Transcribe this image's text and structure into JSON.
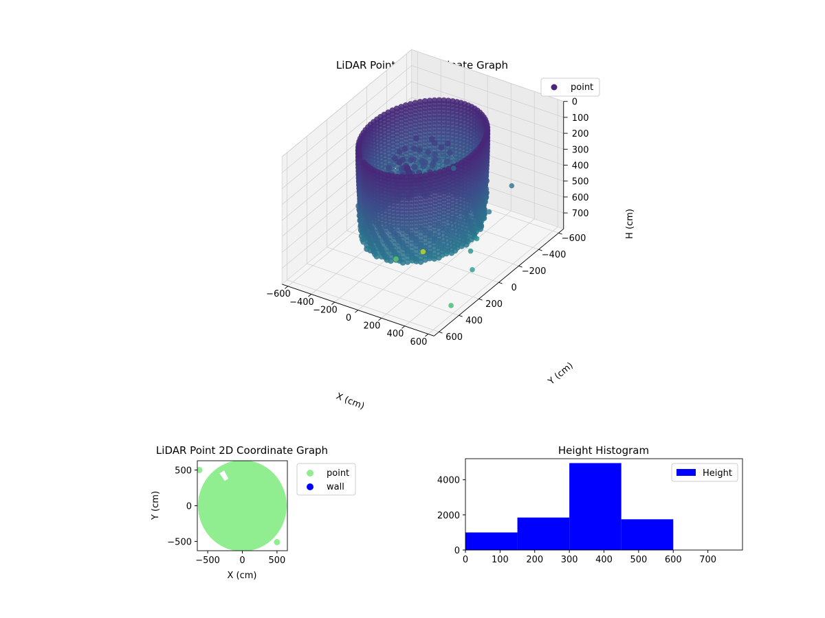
{
  "chart_data": [
    {
      "type": "scatter",
      "projection": "3d",
      "title": "LiDAR Point 3D Coordinate Graph",
      "xlabel": "X (cm)",
      "ylabel": "Y (cm)",
      "zlabel": "H (cm)",
      "xlim": [
        -650,
        650
      ],
      "ylim": [
        -650,
        650
      ],
      "zlim": [
        800,
        0
      ],
      "z_inverted": true,
      "xticks": [
        -600,
        -400,
        -200,
        0,
        200,
        400,
        600
      ],
      "yticks": [
        -600,
        -400,
        -200,
        0,
        200,
        400,
        600
      ],
      "zticks": [
        0,
        100,
        200,
        300,
        400,
        500,
        600,
        700
      ],
      "colormap": "viridis",
      "legend": {
        "position": "top-right",
        "entries": [
          {
            "name": "point",
            "color": "#482878"
          }
        ]
      },
      "structure": {
        "wall_radius": 420,
        "wall_height_range": [
          60,
          610
        ],
        "gap_angle_deg": [
          118,
          126
        ]
      },
      "outliers": [
        {
          "x": 300,
          "y": 620,
          "h": 420,
          "color": "#5ec962"
        },
        {
          "x": 480,
          "y": 560,
          "h": 360,
          "color": "#c2df23"
        },
        {
          "x": 560,
          "y": 160,
          "h": 660,
          "color": "#2a9d8f"
        },
        {
          "x": 600,
          "y": 420,
          "h": 740,
          "color": "#3fbc73"
        },
        {
          "x": 360,
          "y": -120,
          "h": 660,
          "color": "#21918c"
        },
        {
          "x": 260,
          "y": -360,
          "h": 640,
          "color": "#2a788e"
        },
        {
          "x": 460,
          "y": 60,
          "h": 620,
          "color": "#21918c"
        },
        {
          "x": -180,
          "y": -520,
          "h": 560,
          "color": "#2c728e"
        },
        {
          "x": 300,
          "y": -540,
          "h": 560,
          "color": "#2c728e"
        }
      ],
      "grid": true
    },
    {
      "type": "scatter",
      "title": "LiDAR Point 2D Coordinate Graph",
      "xlabel": "X (cm)",
      "ylabel": "Y (cm)",
      "xlim": [
        -650,
        650
      ],
      "ylim": [
        -630,
        630
      ],
      "xticks": [
        -500,
        0,
        500
      ],
      "yticks": [
        -500,
        0,
        500
      ],
      "disc_radius": 600,
      "gap_angle_deg": [
        118,
        126
      ],
      "outliers": [
        {
          "x": -620,
          "y": 500
        },
        {
          "x": 500,
          "y": -510
        }
      ],
      "legend": {
        "position": "outside-right",
        "entries": [
          {
            "name": "point",
            "color": "#90ee90"
          },
          {
            "name": "wall",
            "color": "#0000ff"
          }
        ]
      }
    },
    {
      "type": "histogram",
      "title": "Height Histogram",
      "xlim": [
        0,
        800
      ],
      "ylim": [
        0,
        5200
      ],
      "xticks": [
        0,
        100,
        200,
        300,
        400,
        500,
        600,
        700
      ],
      "yticks": [
        0,
        2000,
        4000
      ],
      "bin_edges": [
        0,
        150,
        300,
        450,
        600
      ],
      "counts": [
        1000,
        1850,
        4950,
        1750
      ],
      "color": "#0000ff",
      "legend": {
        "position": "top-right",
        "entries": [
          {
            "name": "Height",
            "color": "#0000ff"
          }
        ]
      }
    }
  ]
}
